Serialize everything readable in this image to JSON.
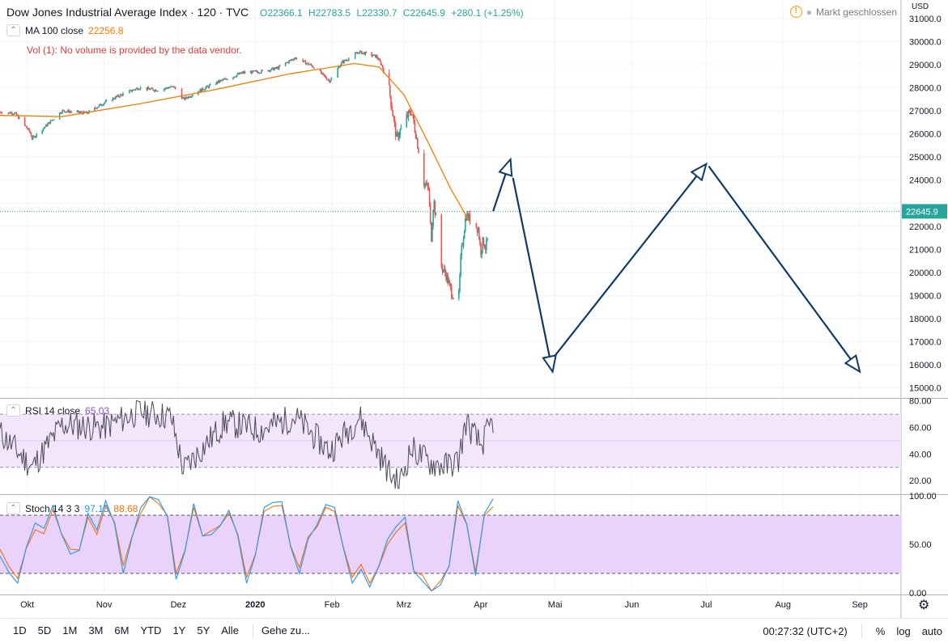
{
  "header": {
    "title": "Dow Jones Industrial Average Index · 120 · TVC",
    "open": "O22366.1",
    "high": "H22783.5",
    "low": "L22330.7",
    "close": "C22645.9",
    "change": "+280.1 (+1.25%)",
    "market_status": "Markt geschlossen",
    "currency": "USD"
  },
  "legend": {
    "ma_label": "MA 100 close",
    "ma_value": "22256.8",
    "vol_message": "Vol (1): No volume is provided by the data vendor.",
    "rsi_label": "RSI 14 close",
    "rsi_value": "65.03",
    "stoch_label": "Stoch 14 3 3",
    "stoch_k": "97.13",
    "stoch_d": "88.68"
  },
  "colors": {
    "up": "#26a69a",
    "down": "#ef5350",
    "ma": "#f57c00",
    "rsi_line": "#7e57c2",
    "rsi_band": "#f3e5fc",
    "stoch_k": "#2196f3",
    "stoch_d": "#ff6d00",
    "stoch_band": "#e9d3fb",
    "arrow": "#0d3b66",
    "last_price_tag": "#26a69a"
  },
  "bottombar": {
    "ranges": [
      "1D",
      "5D",
      "1M",
      "3M",
      "6M",
      "YTD",
      "1Y",
      "5Y",
      "Alle"
    ],
    "goto": "Gehe zu...",
    "clock": "00:27:32 (UTC+2)",
    "percent": "%",
    "log": "log",
    "auto": "auto"
  },
  "chart_data": [
    {
      "type": "candlestick",
      "title": "Dow Jones Industrial Average Index",
      "x_tick_labels": [
        "Okt",
        "Nov",
        "Dez",
        "2020",
        "Feb",
        "Mrz",
        "Apr",
        "Mai",
        "Jun",
        "Jul",
        "Aug",
        "Sep"
      ],
      "y_tick_labels": [
        "15000.0",
        "16000.0",
        "17000.0",
        "18000.0",
        "19000.0",
        "20000.0",
        "21000.0",
        "22000.0",
        "23000.0",
        "24000.0",
        "25000.0",
        "26000.0",
        "27000.0",
        "28000.0",
        "29000.0",
        "30000.0",
        "31000.0"
      ],
      "ylim": [
        14600,
        31800
      ],
      "last_price": 22645.9,
      "last_price_label": "22645.9",
      "close_path": [
        [
          "Sep 20 2019",
          26950
        ],
        [
          "Sep 26 2019",
          26900
        ],
        [
          "Oct 2 2019",
          26100
        ],
        [
          "Oct 3 2019",
          25800
        ],
        [
          "Oct 8 2019",
          26300
        ],
        [
          "Oct 15 2019",
          27000
        ],
        [
          "Oct 25 2019",
          26900
        ],
        [
          "Nov 1 2019",
          27350
        ],
        [
          "Nov 8 2019",
          27700
        ],
        [
          "Nov 15 2019",
          28000
        ],
        [
          "Nov 22 2019",
          27900
        ],
        [
          "Nov 29 2019",
          28050
        ],
        [
          "Dec 3 2019",
          27500
        ],
        [
          "Dec 10 2019",
          27900
        ],
        [
          "Dec 17 2019",
          28250
        ],
        [
          "Dec 27 2019",
          28650
        ],
        [
          "Jan 3 2020",
          28700
        ],
        [
          "Jan 10 2020",
          28850
        ],
        [
          "Jan 17 2020",
          29300
        ],
        [
          "Jan 24 2020",
          28950
        ],
        [
          "Jan 31 2020",
          28300
        ],
        [
          "Feb 5 2020",
          29100
        ],
        [
          "Feb 12 2020",
          29550
        ],
        [
          "Feb 19 2020",
          29350
        ],
        [
          "Feb 21 2020",
          29000
        ],
        [
          "Feb 24 2020",
          27950
        ],
        [
          "Feb 27 2020",
          25800
        ],
        [
          "Mar 2 2020",
          26700
        ],
        [
          "Mar 4 2020",
          27000
        ],
        [
          "Mar 6 2020",
          25900
        ],
        [
          "Mar 9 2020",
          23900
        ],
        [
          "Mar 11 2020",
          23600
        ],
        [
          "Mar 12 2020",
          21400
        ],
        [
          "Mar 13 2020",
          23200
        ],
        [
          "Mar 16 2020",
          20300
        ],
        [
          "Mar 18 2020",
          19900
        ],
        [
          "Mar 20 2020",
          19200
        ],
        [
          "Mar 23 2020",
          18600
        ],
        [
          "Mar 24 2020",
          20700
        ],
        [
          "Mar 26 2020",
          22500
        ],
        [
          "Mar 31 2020",
          21900
        ],
        [
          "Apr 1 2020",
          20900
        ],
        [
          "Apr 2 2020",
          21400
        ],
        [
          "Apr 3 2020",
          21050
        ],
        [
          "Apr 6 2020",
          22650
        ]
      ],
      "ma100_path": [
        [
          "Sep 20 2019",
          26800
        ],
        [
          "Oct 15 2019",
          26750
        ],
        [
          "Nov 15 2019",
          27300
        ],
        [
          "Dec 15 2019",
          27900
        ],
        [
          "Jan 15 2020",
          28600
        ],
        [
          "Feb 10 2020",
          29050
        ],
        [
          "Feb 20 2020",
          28900
        ],
        [
          "Mar 1 2020",
          27700
        ],
        [
          "Mar 10 2020",
          25800
        ],
        [
          "Mar 20 2020",
          23600
        ],
        [
          "Mar 27 2020",
          22300
        ]
      ],
      "drawing_arrows": [
        [
          [
            "Apr 6 2020",
            22650
          ],
          [
            "Apr 13 2020",
            24900
          ]
        ],
        [
          [
            "Apr 14 2020",
            24100
          ],
          [
            "Apr 30 2020",
            15700
          ]
        ],
        [
          [
            "May 1 2020",
            16400
          ],
          [
            "Jul 1 2020",
            24700
          ]
        ],
        [
          [
            "Jul 2 2020",
            24600
          ],
          [
            "Sep 1 2020",
            15700
          ]
        ]
      ]
    },
    {
      "type": "line",
      "title": "RSI 14 close",
      "y_tick_labels": [
        "20.00",
        "40.00",
        "60.00",
        "80.00"
      ],
      "ylim": [
        11,
        81
      ],
      "band": [
        30,
        70
      ],
      "last_value": 65.03,
      "series": [
        {
          "name": "RSI",
          "x": [
            "Sep 20 2019",
            "Oct 3 2019",
            "Oct 15 2019",
            "Nov 1 2019",
            "Nov 15 2019",
            "Nov 28 2019",
            "Dec 3 2019",
            "Dec 20 2019",
            "Jan 3 2020",
            "Jan 17 2020",
            "Jan 31 2020",
            "Feb 12 2020",
            "Feb 24 2020",
            "Feb 28 2020",
            "Mar 4 2020",
            "Mar 12 2020",
            "Mar 18 2020",
            "Mar 23 2020",
            "Mar 26 2020",
            "Apr 1 2020",
            "Apr 6 2020"
          ],
          "values": [
            56,
            30,
            62,
            60,
            72,
            68,
            28,
            64,
            58,
            68,
            42,
            68,
            26,
            17,
            44,
            33,
            31,
            35,
            64,
            46,
            65
          ]
        }
      ]
    },
    {
      "type": "line",
      "title": "Stoch 14 3 3",
      "y_tick_labels": [
        "0.00",
        "50.00",
        "100.00"
      ],
      "ylim": [
        0,
        100
      ],
      "band": [
        20,
        80
      ],
      "series": [
        {
          "name": "%K",
          "values": [
            38,
            10,
            72,
            90,
            40,
            82,
            95,
            20,
            88,
            96,
            14,
            92,
            60,
            85,
            10,
            88,
            94,
            20,
            70,
            88,
            10,
            6,
            55,
            78,
            12,
            8,
            95,
            18,
            97
          ]
        },
        {
          "name": "%D",
          "values": [
            45,
            15,
            65,
            86,
            45,
            78,
            90,
            28,
            82,
            92,
            20,
            88,
            64,
            82,
            16,
            84,
            90,
            26,
            68,
            84,
            16,
            10,
            50,
            72,
            18,
            12,
            90,
            22,
            89
          ]
        }
      ]
    }
  ]
}
